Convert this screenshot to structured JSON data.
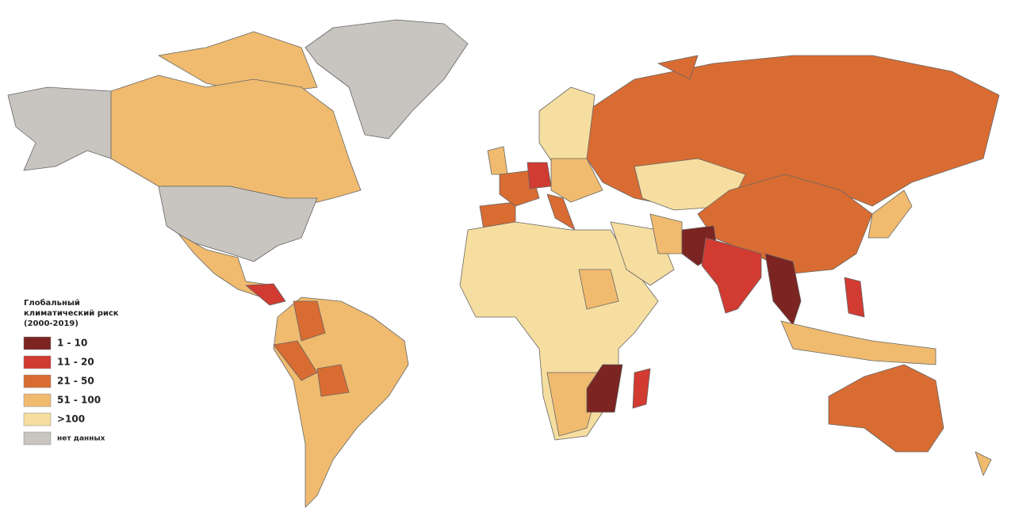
{
  "legend": {
    "title_lines": [
      "Глобальный",
      "климатический риск",
      "(2000-2019)"
    ],
    "items": [
      {
        "label": "1 - 10",
        "color": "#7b2421"
      },
      {
        "label": "11 - 20",
        "color": "#d13b32"
      },
      {
        "label": "21 - 50",
        "color": "#d96c32"
      },
      {
        "label": "51 - 100",
        "color": "#f0bb6f"
      },
      {
        ">100": null,
        "label": ">100",
        "color": "#f6dea0"
      },
      {
        "label": "нет данных",
        "color": "#c8c4bf"
      }
    ]
  }
}
